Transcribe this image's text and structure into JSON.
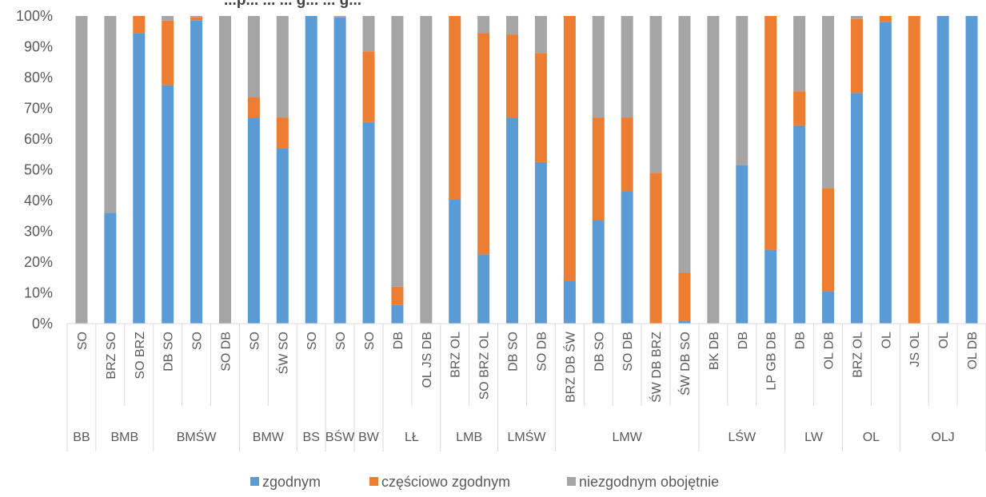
{
  "chart_data": {
    "type": "bar",
    "stacked": "percent",
    "title": "...p... ... ... g... ... g...",
    "title_visible_partial": true,
    "ylim": [
      0,
      100
    ],
    "yticks": [
      "0%",
      "10%",
      "20%",
      "30%",
      "40%",
      "50%",
      "60%",
      "70%",
      "80%",
      "90%",
      "100%"
    ],
    "grid": false,
    "legend": "bottom",
    "categories": [
      "SO",
      "BRZ SO",
      "SO BRZ",
      "DB SO",
      "SO",
      "SO DB",
      "SO",
      "ŚW SO",
      "SO",
      "SO",
      "SO",
      "DB",
      "OL JS DB",
      "BRZ OL",
      "SO BRZ OL",
      "DB SO",
      "SO DB",
      "BRZ DB ŚW",
      "DB SO",
      "SO DB",
      "ŚW DB BRZ",
      "ŚW DB SO",
      "BK DB",
      "DB",
      "LP GB DB",
      "DB",
      "OL DB",
      "BRZ OL",
      "OL",
      "JS OL",
      "OL",
      "OL DB"
    ],
    "groups": [
      {
        "label": "BB",
        "count": 1
      },
      {
        "label": "BMB",
        "count": 2
      },
      {
        "label": "BMŚW",
        "count": 3
      },
      {
        "label": "BMW",
        "count": 2
      },
      {
        "label": "BS",
        "count": 1
      },
      {
        "label": "BŚW",
        "count": 1
      },
      {
        "label": "BW",
        "count": 1
      },
      {
        "label": "LŁ",
        "count": 2
      },
      {
        "label": "LMB",
        "count": 2
      },
      {
        "label": "LMŚW",
        "count": 2
      },
      {
        "label": "LMW",
        "count": 5
      },
      {
        "label": "LŚW",
        "count": 3
      },
      {
        "label": "LW",
        "count": 2
      },
      {
        "label": "OL",
        "count": 2
      },
      {
        "label": "OLJ",
        "count": 3
      }
    ],
    "series": [
      {
        "name": "zgodnym",
        "color": "#5b9bd5",
        "values": [
          0,
          36,
          94.5,
          77.5,
          98.5,
          0,
          67,
          57,
          100,
          99.5,
          65.5,
          6,
          0,
          40.5,
          22.5,
          67,
          52.5,
          14,
          33.5,
          43,
          0,
          1,
          0,
          51.5,
          24,
          64.5,
          10.5,
          75,
          98,
          0,
          100,
          100
        ]
      },
      {
        "name": "częściowo zgodnym",
        "color": "#ed7d31",
        "values": [
          0,
          0,
          5.5,
          21,
          1,
          0,
          6.5,
          10,
          0,
          0,
          23,
          6,
          0,
          59.5,
          72,
          27,
          35.5,
          86,
          33.5,
          24,
          49,
          15.5,
          0,
          0,
          76,
          11,
          33.5,
          24,
          2,
          100,
          0,
          0
        ]
      },
      {
        "name": "niezgodnym obojętnie",
        "color": "#a5a5a5",
        "values": [
          100,
          64,
          0,
          1.5,
          0.5,
          100,
          26.5,
          33,
          0,
          0.5,
          11.5,
          88,
          100,
          0,
          5.5,
          6,
          12,
          0,
          33,
          33,
          51,
          83.5,
          100,
          48.5,
          0,
          24.5,
          56,
          1,
          0,
          0,
          0,
          0
        ]
      }
    ]
  }
}
